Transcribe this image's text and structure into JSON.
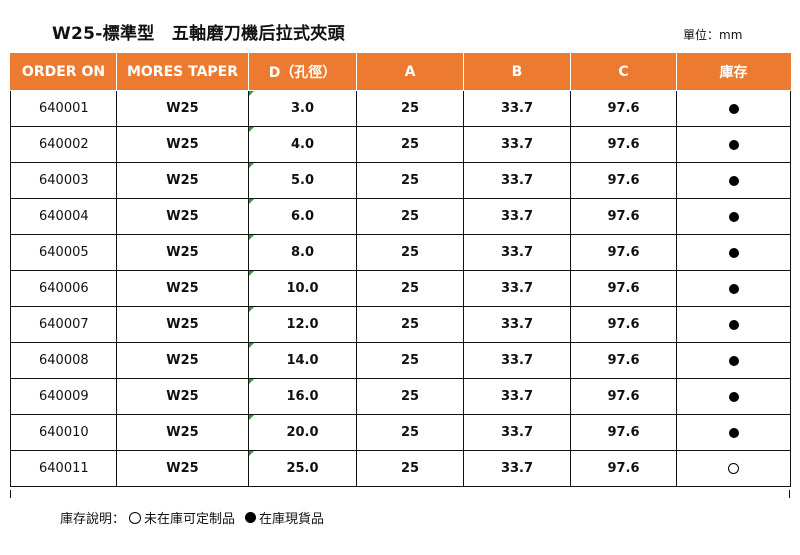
{
  "title": "W25-標準型　五軸磨刀機后拉式夾頭",
  "unit": "單位：mm",
  "columns": [
    "ORDER ON",
    "MORES TAPER",
    "D（孔徑）",
    "A",
    "B",
    "C",
    "庫存"
  ],
  "rows": [
    {
      "order": "640001",
      "taper": "W25",
      "d": "3.0",
      "a": "25",
      "b": "33.7",
      "c": "97.6",
      "stock": "in"
    },
    {
      "order": "640002",
      "taper": "W25",
      "d": "4.0",
      "a": "25",
      "b": "33.7",
      "c": "97.6",
      "stock": "in"
    },
    {
      "order": "640003",
      "taper": "W25",
      "d": "5.0",
      "a": "25",
      "b": "33.7",
      "c": "97.6",
      "stock": "in"
    },
    {
      "order": "640004",
      "taper": "W25",
      "d": "6.0",
      "a": "25",
      "b": "33.7",
      "c": "97.6",
      "stock": "in"
    },
    {
      "order": "640005",
      "taper": "W25",
      "d": "8.0",
      "a": "25",
      "b": "33.7",
      "c": "97.6",
      "stock": "in"
    },
    {
      "order": "640006",
      "taper": "W25",
      "d": "10.0",
      "a": "25",
      "b": "33.7",
      "c": "97.6",
      "stock": "in"
    },
    {
      "order": "640007",
      "taper": "W25",
      "d": "12.0",
      "a": "25",
      "b": "33.7",
      "c": "97.6",
      "stock": "in"
    },
    {
      "order": "640008",
      "taper": "W25",
      "d": "14.0",
      "a": "25",
      "b": "33.7",
      "c": "97.6",
      "stock": "in"
    },
    {
      "order": "640009",
      "taper": "W25",
      "d": "16.0",
      "a": "25",
      "b": "33.7",
      "c": "97.6",
      "stock": "in"
    },
    {
      "order": "640010",
      "taper": "W25",
      "d": "20.0",
      "a": "25",
      "b": "33.7",
      "c": "97.6",
      "stock": "in"
    },
    {
      "order": "640011",
      "taper": "W25",
      "d": "25.0",
      "a": "25",
      "b": "33.7",
      "c": "97.6",
      "stock": "order"
    }
  ],
  "legend": {
    "label": "庫存說明：",
    "made_to_order": "未在庫可定制品",
    "in_stock": "在庫現貨品"
  },
  "colors": {
    "header_bg": "#ec7b31",
    "header_text": "#ffffff"
  }
}
